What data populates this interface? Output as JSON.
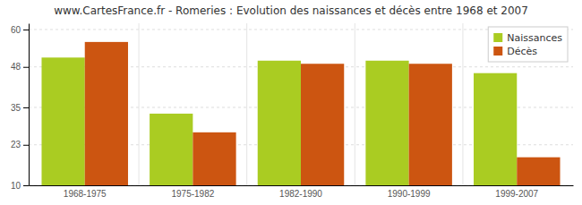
{
  "chart_data": {
    "type": "bar",
    "title": "www.CartesFrance.fr - Romeries : Evolution des naissances et décès entre 1968 et 2007",
    "categories": [
      "1968-1975",
      "1975-1982",
      "1982-1990",
      "1990-1999",
      "1999-2007"
    ],
    "series": [
      {
        "name": "Naissances",
        "color": "#aacc22",
        "values": [
          51,
          33,
          50,
          50,
          46
        ]
      },
      {
        "name": "Décès",
        "color": "#cc5511",
        "values": [
          56,
          27,
          49,
          49,
          19
        ]
      }
    ],
    "ylim": [
      10,
      62
    ],
    "yticks": [
      10,
      23,
      35,
      48,
      60
    ],
    "grid": true,
    "legend": "upper right"
  }
}
